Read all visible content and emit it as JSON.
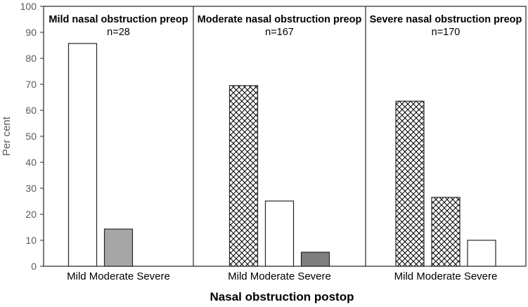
{
  "chart_data": {
    "type": "bar",
    "ylabel": "Per cent",
    "xlabel": "Nasal obstruction postop",
    "ylim": [
      0,
      100
    ],
    "yticks": [
      0,
      10,
      20,
      30,
      40,
      50,
      60,
      70,
      80,
      90,
      100
    ],
    "categories": [
      "Mild",
      "Moderate",
      "Severe"
    ],
    "panels": [
      {
        "title": "Mild nasal obstruction preop",
        "n_label": "n=28",
        "values": [
          85.7,
          14.3,
          0
        ],
        "fills": [
          "white",
          "gray",
          "white"
        ]
      },
      {
        "title": "Moderate nasal obstruction preop",
        "n_label": "n=167",
        "values": [
          69.5,
          25.1,
          5.4
        ],
        "fills": [
          "hatch",
          "white",
          "darkgray"
        ]
      },
      {
        "title": "Severe nasal obstruction preop",
        "n_label": "n=170",
        "values": [
          63.5,
          26.5,
          10.0
        ],
        "fills": [
          "hatch",
          "hatch",
          "white"
        ]
      }
    ],
    "colors": {
      "axis": "#262626",
      "gray_fill": "#a6a6a6",
      "darkgray_fill": "#7f7f7f",
      "white_fill": "#ffffff",
      "text": "#000000",
      "tick_text": "#595959"
    }
  }
}
